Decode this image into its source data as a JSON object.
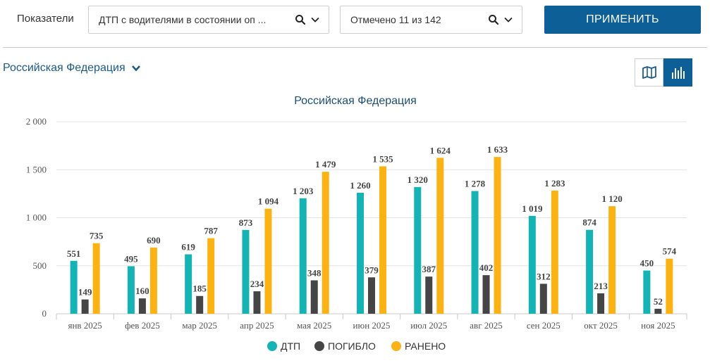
{
  "filters": {
    "indicators_label": "Показатели",
    "indicator_value": "ДТП с водителями в состоянии оп ...",
    "regions_value": "Отмечено 11 из 142",
    "apply_label": "ПРИМЕНИТЬ"
  },
  "region": {
    "label": "Российская Федерация"
  },
  "icons": {
    "search": "search-icon",
    "chevron": "chevron-down-icon",
    "map": "map-icon",
    "bar": "bar-chart-icon"
  },
  "colors": {
    "accent": "#0d5f97",
    "dtp": "#15b3b3",
    "dead": "#454545",
    "injured": "#fbb214"
  },
  "chart_data": {
    "type": "bar",
    "title": "Российская Федерация",
    "categories": [
      "янв 2025",
      "фев 2025",
      "мар 2025",
      "апр 2025",
      "мая 2025",
      "июн 2025",
      "июл 2025",
      "авг 2025",
      "сен 2025",
      "окт 2025",
      "ноя 2025"
    ],
    "series": [
      {
        "name": "ДТП",
        "color": "#15b3b3",
        "values": [
          551,
          495,
          619,
          873,
          1203,
          1260,
          1320,
          1278,
          1019,
          874,
          450
        ],
        "labels": [
          "551",
          "495",
          "619",
          "873",
          "1 203",
          "1 260",
          "1 320",
          "1 278",
          "1 019",
          "874",
          "450"
        ]
      },
      {
        "name": "ПОГИБЛО",
        "color": "#454545",
        "values": [
          149,
          160,
          185,
          234,
          348,
          379,
          387,
          402,
          312,
          213,
          52
        ],
        "labels": [
          "149",
          "160",
          "185",
          "234",
          "348",
          "379",
          "387",
          "402",
          "312",
          "213",
          "52"
        ]
      },
      {
        "name": "РАНЕНО",
        "color": "#fbb214",
        "values": [
          735,
          690,
          787,
          1094,
          1479,
          1535,
          1624,
          1633,
          1283,
          1120,
          574
        ],
        "labels": [
          "735",
          "690",
          "787",
          "1 094",
          "1 479",
          "1 535",
          "1 624",
          "1 633",
          "1 283",
          "1 120",
          "574"
        ]
      }
    ],
    "yticks": [
      0,
      500,
      1000,
      1500,
      2000
    ],
    "ytick_labels": [
      "0",
      "500",
      "1 000",
      "1 500",
      "2 000"
    ],
    "ylim": [
      0,
      2000
    ],
    "grid": true,
    "legend": "bottom-center"
  }
}
